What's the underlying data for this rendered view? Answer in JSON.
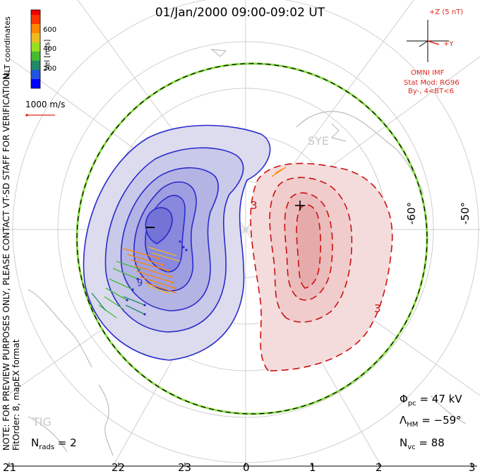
{
  "title": "01/Jan/2000 09:00-09:02 UT",
  "coordinates": "MLT coordinates",
  "colorbar": {
    "label": "Vel [m/s]",
    "ticks": [
      "600",
      "400",
      "200"
    ],
    "colors": [
      "#0000ff",
      "#2255dd",
      "#228866",
      "#44bb33",
      "#99dd22",
      "#eebb22",
      "#ff8800",
      "#ff3300",
      "#ee0000"
    ]
  },
  "reference_vector": "1000 m/s",
  "imf": {
    "z_label": "+Z (5 nT)",
    "y_label": "+Y",
    "source": "OMNI IMF",
    "stat_mod": "Stat Mod: RG96",
    "condition": "By-, 4<BT<6"
  },
  "notice": "NOTE: FOR PREVIEW PURPOSES ONLY, PLEASE CONTACT VT-SD STAFF FOR VERIFICATION.",
  "fit_info": "FitOrder: 8, mapEX format",
  "latitude_labels": [
    "-60°",
    "-50°"
  ],
  "station_labels": [
    "SYE",
    "TIG"
  ],
  "mlt_ticks": [
    "21",
    "22",
    "23",
    "0",
    "1",
    "2",
    "3"
  ],
  "extrema": {
    "min_mark": "–",
    "max_mark": "+"
  },
  "contour_labels": [
    "3",
    "3",
    "9"
  ],
  "stats": {
    "phi_pc_label": "Φ",
    "phi_pc_sub": "pc",
    "phi_pc_value": " = 47 kV",
    "lambda_hm_label": "Λ",
    "lambda_hm_sub": "HM",
    "lambda_hm_value": " = −59°",
    "n_vc_label": "N",
    "n_vc_sub": "vc",
    "n_vc_value": " = 88",
    "n_rads_label": "N",
    "n_rads_sub": "rads",
    "n_rads_value": " = 2"
  },
  "colors": {
    "negative_cell": "#2a2acc",
    "positive_cell": "#cc1111",
    "boundary_green": "#88dd44",
    "grid": "#c8c8c8"
  }
}
